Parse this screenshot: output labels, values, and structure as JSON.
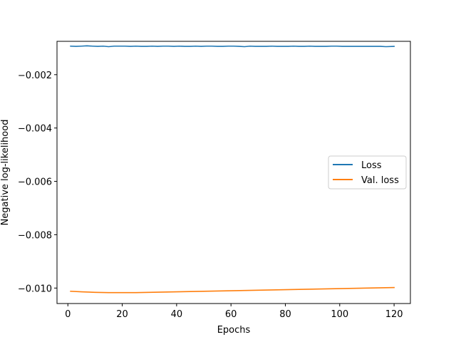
{
  "chart_data": {
    "type": "line",
    "title": "",
    "xlabel": "Epochs",
    "ylabel": "Negative log-likelihood",
    "xlim": [
      -4,
      126
    ],
    "ylim": [
      -0.01058,
      -0.00075
    ],
    "x_ticks": [
      0,
      20,
      40,
      60,
      80,
      100,
      120
    ],
    "x_tick_labels": [
      "0",
      "20",
      "40",
      "60",
      "80",
      "100",
      "120"
    ],
    "y_ticks": [
      -0.002,
      -0.004,
      -0.006,
      -0.008,
      -0.01
    ],
    "y_tick_labels": [
      "−0.002",
      "−0.004",
      "−0.006",
      "−0.008",
      "−0.010"
    ],
    "grid": false,
    "legend": "center-right",
    "series": [
      {
        "name": "Loss",
        "color": "#1f77b4",
        "x": [
          1,
          3,
          5,
          7,
          9,
          11,
          13,
          15,
          17,
          19,
          21,
          23,
          25,
          27,
          29,
          31,
          33,
          35,
          37,
          39,
          41,
          43,
          45,
          47,
          49,
          51,
          53,
          55,
          57,
          59,
          61,
          63,
          65,
          67,
          69,
          71,
          73,
          75,
          77,
          79,
          81,
          83,
          85,
          87,
          89,
          91,
          93,
          95,
          97,
          99,
          101,
          103,
          105,
          107,
          109,
          111,
          113,
          115,
          117,
          120
        ],
        "values": [
          -0.00093,
          -0.00094,
          -0.00093,
          -0.00092,
          -0.00093,
          -0.00094,
          -0.00093,
          -0.00095,
          -0.00093,
          -0.00093,
          -0.00093,
          -0.00094,
          -0.00093,
          -0.00094,
          -0.00094,
          -0.00093,
          -0.00094,
          -0.00093,
          -0.00093,
          -0.00094,
          -0.00093,
          -0.00094,
          -0.00094,
          -0.00093,
          -0.00094,
          -0.00093,
          -0.00093,
          -0.00094,
          -0.00094,
          -0.00093,
          -0.00093,
          -0.00094,
          -0.00095,
          -0.00093,
          -0.00094,
          -0.00094,
          -0.00094,
          -0.00093,
          -0.00094,
          -0.00094,
          -0.00094,
          -0.00093,
          -0.00094,
          -0.00094,
          -0.00093,
          -0.00094,
          -0.00094,
          -0.00094,
          -0.00093,
          -0.00093,
          -0.00094,
          -0.00094,
          -0.00094,
          -0.00094,
          -0.00094,
          -0.00094,
          -0.00094,
          -0.00094,
          -0.00095,
          -0.00094
        ]
      },
      {
        "name": "Val. loss",
        "color": "#ff7f0e",
        "x": [
          1,
          5,
          10,
          15,
          20,
          25,
          30,
          35,
          40,
          45,
          50,
          55,
          60,
          65,
          70,
          75,
          80,
          85,
          90,
          95,
          100,
          105,
          110,
          115,
          120
        ],
        "values": [
          -0.01012,
          -0.01014,
          -0.01016,
          -0.01017,
          -0.01017,
          -0.01017,
          -0.01016,
          -0.01015,
          -0.01014,
          -0.01013,
          -0.01012,
          -0.01011,
          -0.0101,
          -0.01009,
          -0.01008,
          -0.01007,
          -0.01006,
          -0.01005,
          -0.01004,
          -0.01003,
          -0.01002,
          -0.01001,
          -0.01,
          -0.00999,
          -0.00998
        ]
      }
    ]
  }
}
